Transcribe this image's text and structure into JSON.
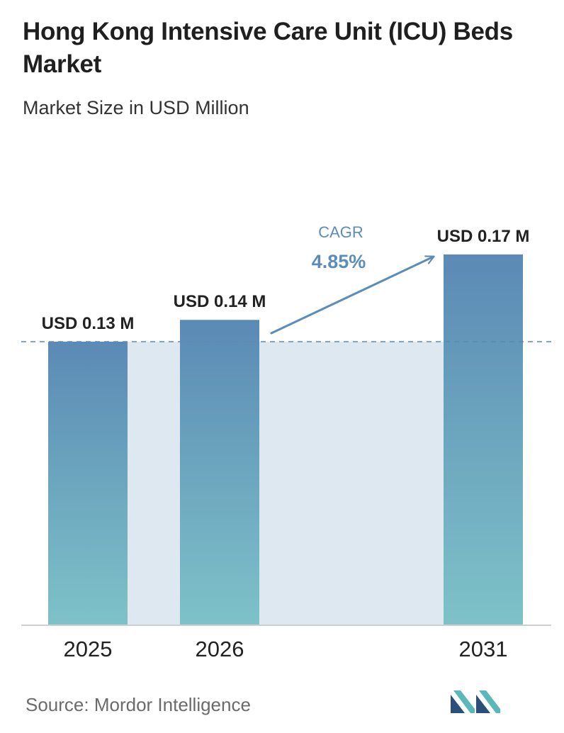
{
  "title": "Hong Kong Intensive Care Unit (ICU) Beds Market",
  "subtitle": "Market Size in USD Million",
  "source": "Source:  Mordor Intelligence",
  "logo_icon": "mordor-intelligence-logo-icon",
  "colors": {
    "bar_top": "#5b8ab5",
    "bar_bottom": "#7ec2c8",
    "band": "#dde8f1",
    "accent": "#5b8db8",
    "reference_line": "#5b8ab5"
  },
  "chart_data": {
    "type": "bar",
    "categories": [
      "2025",
      "2026",
      "2031"
    ],
    "values": [
      0.13,
      0.14,
      0.17
    ],
    "value_labels": [
      "USD 0.13 M",
      "USD 0.14 M",
      "USD 0.17 M"
    ],
    "title": "Hong Kong Intensive Care Unit (ICU) Beds Market",
    "subtitle": "Market Size in USD Million",
    "xlabel": "",
    "ylabel": "",
    "grid": false,
    "reference_line": {
      "value": 0.13,
      "style": "dashed"
    },
    "annotation": {
      "label": "CAGR",
      "value": "4.85%"
    }
  }
}
